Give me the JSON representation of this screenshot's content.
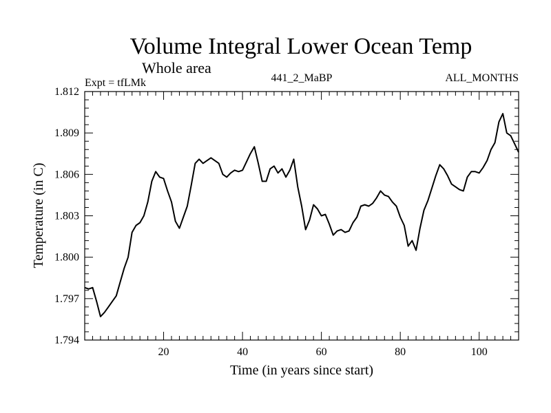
{
  "chart_data": {
    "type": "line",
    "title": "Volume Integral Lower Ocean Temp",
    "subtitle": "Whole area",
    "experiment_label": "Expt = tfLMk",
    "run_label": "441_2_MaBP",
    "months_label": "ALL_MONTHS",
    "xlabel": "Time (in years since start)",
    "ylabel": "Temperature (in C)",
    "xlim": [
      0,
      110
    ],
    "ylim": [
      1.794,
      1.812
    ],
    "x_ticks": [
      20,
      40,
      60,
      80,
      100
    ],
    "y_ticks": [
      "1.794",
      "1.797",
      "1.800",
      "1.803",
      "1.806",
      "1.809",
      "1.812"
    ],
    "series": [
      {
        "name": "tfLMk",
        "x": [
          0,
          1,
          2,
          3,
          4,
          5,
          6,
          7,
          8,
          9,
          10,
          11,
          12,
          13,
          14,
          15,
          16,
          17,
          18,
          19,
          20,
          21,
          22,
          23,
          24,
          25,
          26,
          27,
          28,
          29,
          30,
          31,
          32,
          33,
          34,
          35,
          36,
          37,
          38,
          39,
          40,
          41,
          42,
          43,
          44,
          45,
          46,
          47,
          48,
          49,
          50,
          51,
          52,
          53,
          54,
          55,
          56,
          57,
          58,
          59,
          60,
          61,
          62,
          63,
          64,
          65,
          66,
          67,
          68,
          69,
          70,
          71,
          72,
          73,
          74,
          75,
          76,
          77,
          78,
          79,
          80,
          81,
          82,
          83,
          84,
          85,
          86,
          87,
          88,
          89,
          90,
          91,
          92,
          93,
          94,
          95,
          96,
          97,
          98,
          99,
          100,
          101,
          102,
          103,
          104,
          105,
          106,
          107,
          108,
          109,
          110
        ],
        "values": [
          1.7978,
          1.7977,
          1.7978,
          1.7968,
          1.7957,
          1.796,
          1.7964,
          1.7968,
          1.7972,
          1.7982,
          1.7992,
          1.8,
          1.8018,
          1.8023,
          1.8025,
          1.803,
          1.804,
          1.8055,
          1.8062,
          1.8058,
          1.8057,
          1.8048,
          1.804,
          1.8026,
          1.8021,
          1.8029,
          1.8037,
          1.8052,
          1.8068,
          1.8071,
          1.8068,
          1.807,
          1.8072,
          1.807,
          1.8068,
          1.806,
          1.8058,
          1.8061,
          1.8063,
          1.8062,
          1.8063,
          1.8069,
          1.8075,
          1.808,
          1.8068,
          1.8055,
          1.8055,
          1.8064,
          1.8066,
          1.8061,
          1.8064,
          1.8058,
          1.8063,
          1.8071,
          1.8051,
          1.8037,
          1.802,
          1.8027,
          1.8038,
          1.8035,
          1.803,
          1.8031,
          1.8024,
          1.8016,
          1.8019,
          1.802,
          1.8018,
          1.8019,
          1.8025,
          1.8029,
          1.8037,
          1.8038,
          1.8037,
          1.8039,
          1.8043,
          1.8048,
          1.8045,
          1.8044,
          1.804,
          1.8037,
          1.8029,
          1.8023,
          1.8008,
          1.8012,
          1.8005,
          1.8021,
          1.8034,
          1.8041,
          1.805,
          1.8059,
          1.8067,
          1.8064,
          1.8059,
          1.8053,
          1.8051,
          1.8049,
          1.8048,
          1.8058,
          1.8062,
          1.8062,
          1.8061,
          1.8065,
          1.807,
          1.8078,
          1.8083,
          1.8098,
          1.8104,
          1.809,
          1.8088,
          1.8082,
          1.8076
        ]
      }
    ]
  }
}
